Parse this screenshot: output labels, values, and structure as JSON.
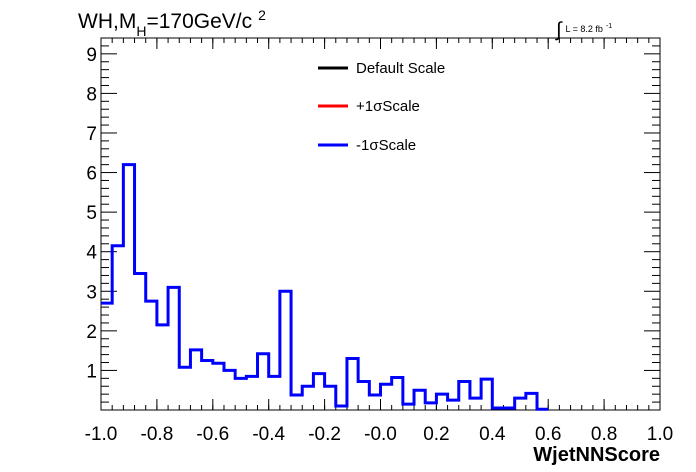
{
  "chart_data": {
    "type": "line",
    "title_parts": {
      "main": "WH,M",
      "sub": "H",
      "mid": "=170GeV/c",
      "sup": "2"
    },
    "lumi_parts": {
      "integral": "∫",
      "main": "L = 8.2 fb",
      "sup": "-1"
    },
    "xlabel": "WjetNNScore",
    "xlim": [
      -1.0,
      1.0
    ],
    "ylim": [
      0,
      9.4
    ],
    "x_ticks": [
      "-1.0",
      "-0.8",
      "-0.6",
      "-0.4",
      "-0.2",
      "-0.0",
      "0.2",
      "0.4",
      "0.6",
      "0.8",
      "1.0"
    ],
    "y_ticks": [
      "1",
      "2",
      "3",
      "4",
      "5",
      "6",
      "7",
      "8",
      "9"
    ],
    "legend": [
      {
        "name": "Default Scale",
        "color": "#000000"
      },
      {
        "name": "+1σScale",
        "color": "#ff0000"
      },
      {
        "name": "-1σScale",
        "color": "#0000ff"
      }
    ],
    "bin_edges_start": -1.0,
    "bin_width": 0.04,
    "series": [
      {
        "name": "-1σScale",
        "color": "#0000ff",
        "values": [
          2.7,
          4.15,
          6.2,
          3.45,
          2.75,
          2.15,
          3.1,
          1.08,
          1.52,
          1.25,
          1.18,
          1.0,
          0.8,
          0.85,
          1.42,
          0.85,
          3.0,
          0.38,
          0.6,
          0.92,
          0.6,
          0.1,
          1.3,
          0.72,
          0.38,
          0.65,
          0.82,
          0.15,
          0.5,
          0.18,
          0.4,
          0.25,
          0.72,
          0.3,
          0.78,
          0.05,
          0.05,
          0.3,
          0.42,
          0.02
        ]
      }
    ]
  }
}
